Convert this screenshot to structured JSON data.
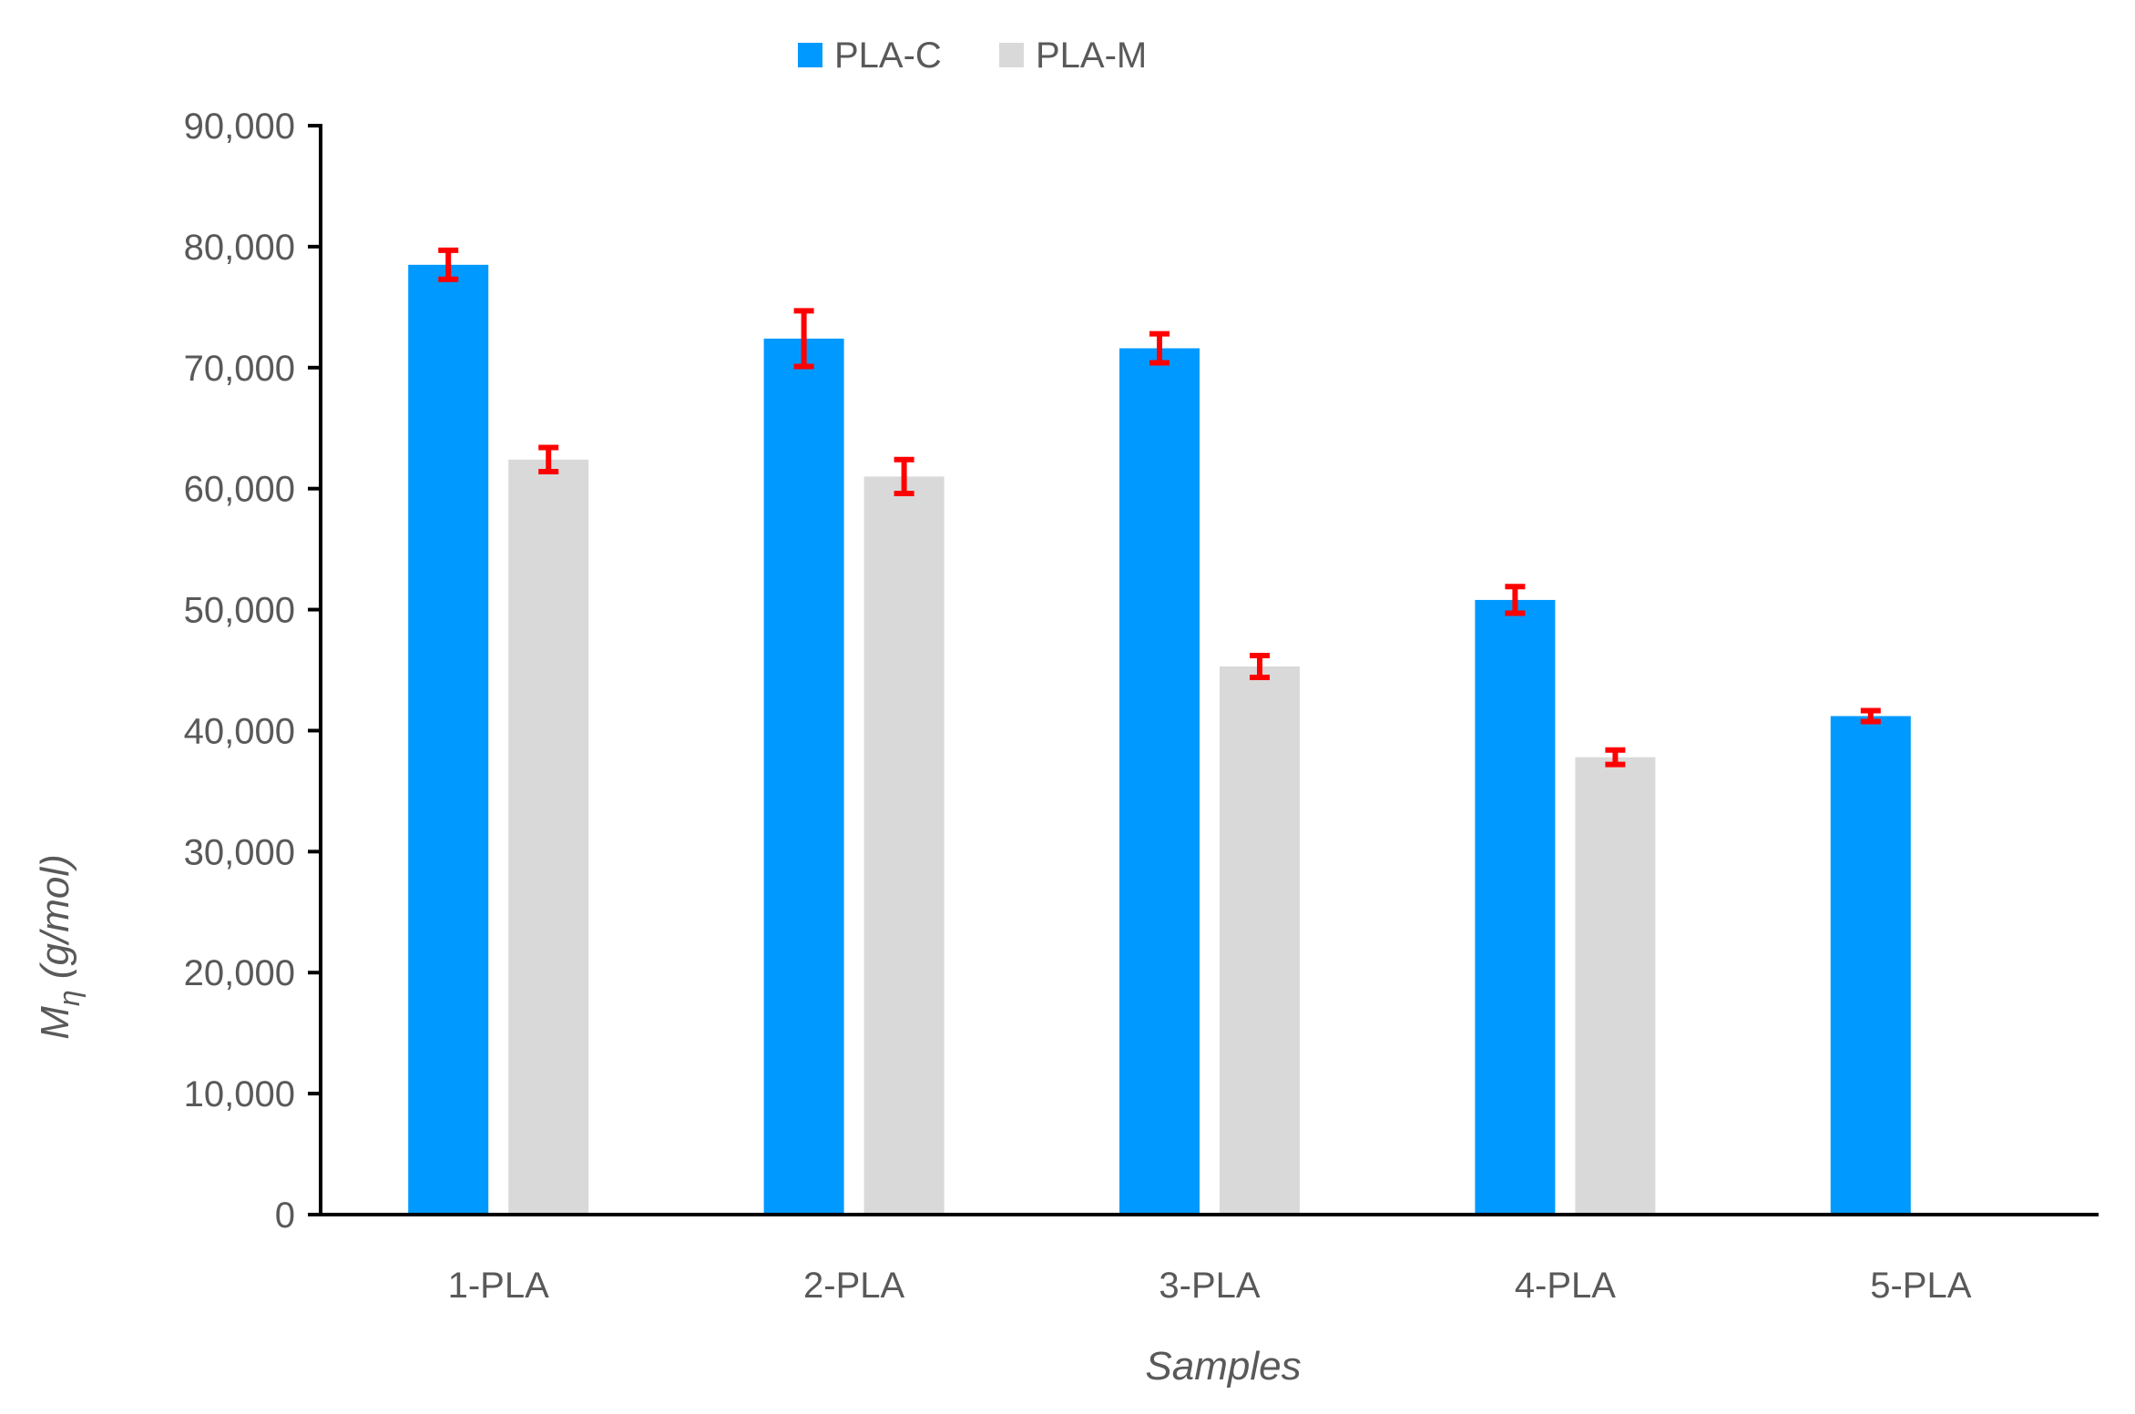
{
  "chart_data": {
    "type": "bar",
    "categories": [
      "1-PLA",
      "2-PLA",
      "3-PLA",
      "4-PLA",
      "5-PLA"
    ],
    "series": [
      {
        "name": "PLA-C",
        "color": "#0099FF",
        "values": [
          78500,
          72400,
          71600,
          50800,
          41200
        ],
        "errors": [
          1200,
          2300,
          1200,
          1100,
          450
        ]
      },
      {
        "name": "PLA-M",
        "color": "#D9D9D9",
        "values": [
          62400,
          61000,
          45300,
          37800,
          null
        ],
        "errors": [
          1000,
          1400,
          900,
          600,
          null
        ]
      }
    ],
    "xlabel": "Samples",
    "ylabel": {
      "main": "M",
      "sub": "η",
      "unit": " (g/mol)"
    },
    "ylim": [
      0,
      90000
    ],
    "yticks": [
      0,
      10000,
      20000,
      30000,
      40000,
      50000,
      60000,
      70000,
      80000,
      90000
    ],
    "ytick_labels": [
      "0",
      "10,000",
      "20,000",
      "30,000",
      "40,000",
      "50,000",
      "60,000",
      "70,000",
      "80,000",
      "90,000"
    ],
    "error_bar_color": "#FF0000",
    "grid": false,
    "legend_position": "top"
  }
}
